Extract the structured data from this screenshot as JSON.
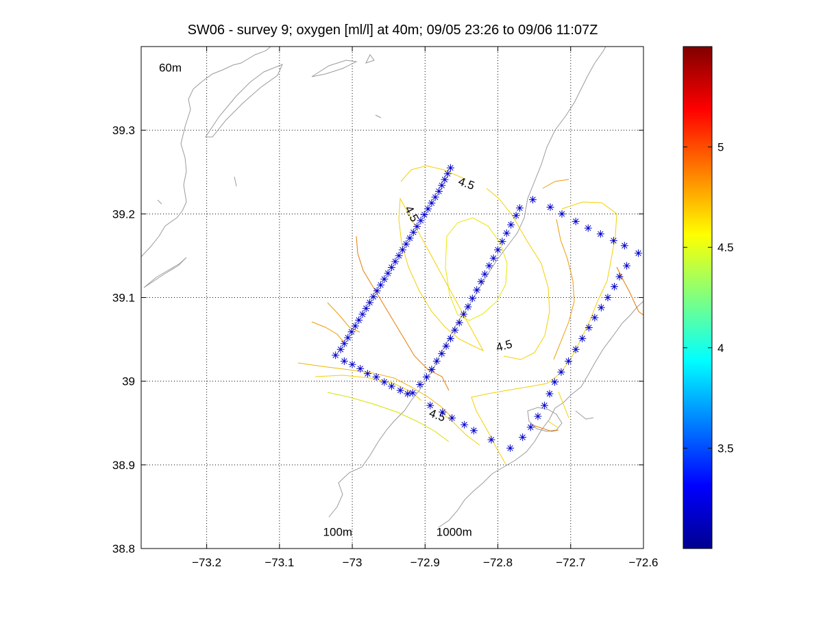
{
  "chart_data": {
    "type": "contour",
    "title": "SW06 - survey 9; oxygen [ml/l] at 40m; 09/05 23:26 to 09/06 11:07Z",
    "xlim": [
      -73.29,
      -72.6
    ],
    "ylim": [
      38.8,
      39.4
    ],
    "xticks": [
      -73.2,
      -73.1,
      -73.0,
      -72.9,
      -72.8,
      -72.7,
      -72.6
    ],
    "xtick_labels": [
      "-73.2",
      "-73.1",
      "-73",
      "-72.9",
      "-72.8",
      "-72.7",
      "-72.6"
    ],
    "yticks": [
      38.8,
      38.9,
      39.0,
      39.1,
      39.2,
      39.3
    ],
    "ytick_labels": [
      "38.8",
      "38.9",
      "39",
      "39.1",
      "39.2",
      "39.3"
    ],
    "grid": true,
    "colorbar": {
      "colormap": "jet",
      "range": [
        3.0,
        5.5
      ],
      "ticks": [
        3.5,
        4.0,
        4.5,
        5.0
      ],
      "tick_labels": [
        "3.5",
        "4",
        "4.5",
        "5"
      ]
    },
    "isobath_labels": [
      {
        "text": "60m",
        "lon": -73.25,
        "lat": 39.37
      },
      {
        "text": "100m",
        "lon": -73.02,
        "lat": 38.815
      },
      {
        "text": "1000m",
        "lon": -72.86,
        "lat": 38.815
      }
    ],
    "contour_labels": [
      {
        "text": "4.5",
        "lon": -72.845,
        "lat": 39.232,
        "rotate": 20
      },
      {
        "text": "4.5",
        "lon": -72.923,
        "lat": 39.198,
        "rotate": 62
      },
      {
        "text": "4.5",
        "lon": -72.79,
        "lat": 39.038,
        "rotate": -15
      },
      {
        "text": "4.5",
        "lon": -72.885,
        "lat": 38.955,
        "rotate": 20
      }
    ],
    "stations": [
      {
        "lon": -72.865,
        "lat": 39.255
      },
      {
        "lon": -72.869,
        "lat": 39.248
      },
      {
        "lon": -72.873,
        "lat": 39.241
      },
      {
        "lon": -72.877,
        "lat": 39.234
      },
      {
        "lon": -72.881,
        "lat": 39.227
      },
      {
        "lon": -72.886,
        "lat": 39.22
      },
      {
        "lon": -72.891,
        "lat": 39.213
      },
      {
        "lon": -72.896,
        "lat": 39.206
      },
      {
        "lon": -72.901,
        "lat": 39.199
      },
      {
        "lon": -72.906,
        "lat": 39.192
      },
      {
        "lon": -72.911,
        "lat": 39.185
      },
      {
        "lon": -72.916,
        "lat": 39.178
      },
      {
        "lon": -72.921,
        "lat": 39.171
      },
      {
        "lon": -72.926,
        "lat": 39.164
      },
      {
        "lon": -72.931,
        "lat": 39.157
      },
      {
        "lon": -72.936,
        "lat": 39.15
      },
      {
        "lon": -72.941,
        "lat": 39.143
      },
      {
        "lon": -72.946,
        "lat": 39.136
      },
      {
        "lon": -72.951,
        "lat": 39.129
      },
      {
        "lon": -72.956,
        "lat": 39.122
      },
      {
        "lon": -72.961,
        "lat": 39.115
      },
      {
        "lon": -72.966,
        "lat": 39.108
      },
      {
        "lon": -72.971,
        "lat": 39.101
      },
      {
        "lon": -72.976,
        "lat": 39.094
      },
      {
        "lon": -72.981,
        "lat": 39.087
      },
      {
        "lon": -72.986,
        "lat": 39.08
      },
      {
        "lon": -72.991,
        "lat": 39.073
      },
      {
        "lon": -72.996,
        "lat": 39.066
      },
      {
        "lon": -73.001,
        "lat": 39.059
      },
      {
        "lon": -73.006,
        "lat": 39.052
      },
      {
        "lon": -73.011,
        "lat": 39.045
      },
      {
        "lon": -73.016,
        "lat": 39.038
      },
      {
        "lon": -73.023,
        "lat": 39.031
      },
      {
        "lon": -73.011,
        "lat": 39.024
      },
      {
        "lon": -73.0,
        "lat": 39.02
      },
      {
        "lon": -72.989,
        "lat": 39.015
      },
      {
        "lon": -72.979,
        "lat": 39.009
      },
      {
        "lon": -72.967,
        "lat": 39.005
      },
      {
        "lon": -72.956,
        "lat": 38.999
      },
      {
        "lon": -72.946,
        "lat": 38.994
      },
      {
        "lon": -72.934,
        "lat": 38.989
      },
      {
        "lon": -72.924,
        "lat": 38.985
      },
      {
        "lon": -72.893,
        "lat": 38.971
      },
      {
        "lon": -72.876,
        "lat": 38.963
      },
      {
        "lon": -72.863,
        "lat": 38.956
      },
      {
        "lon": -72.846,
        "lat": 38.948
      },
      {
        "lon": -72.833,
        "lat": 38.941
      },
      {
        "lon": -72.809,
        "lat": 38.93
      },
      {
        "lon": -72.783,
        "lat": 38.92
      },
      {
        "lon": -72.766,
        "lat": 38.933
      },
      {
        "lon": -72.755,
        "lat": 38.945
      },
      {
        "lon": -72.745,
        "lat": 38.958
      },
      {
        "lon": -72.736,
        "lat": 38.971
      },
      {
        "lon": -72.729,
        "lat": 38.985
      },
      {
        "lon": -72.722,
        "lat": 38.999
      },
      {
        "lon": -72.713,
        "lat": 39.011
      },
      {
        "lon": -72.703,
        "lat": 39.024
      },
      {
        "lon": -72.693,
        "lat": 39.038
      },
      {
        "lon": -72.684,
        "lat": 39.051
      },
      {
        "lon": -72.675,
        "lat": 39.064
      },
      {
        "lon": -72.667,
        "lat": 39.076
      },
      {
        "lon": -72.658,
        "lat": 39.088
      },
      {
        "lon": -72.649,
        "lat": 39.1
      },
      {
        "lon": -72.64,
        "lat": 39.113
      },
      {
        "lon": -72.633,
        "lat": 39.125
      },
      {
        "lon": -72.623,
        "lat": 39.138
      },
      {
        "lon": -72.626,
        "lat": 39.162
      },
      {
        "lon": -72.607,
        "lat": 39.153
      },
      {
        "lon": -72.641,
        "lat": 39.168
      },
      {
        "lon": -72.659,
        "lat": 39.176
      },
      {
        "lon": -72.676,
        "lat": 39.183
      },
      {
        "lon": -72.693,
        "lat": 39.191
      },
      {
        "lon": -72.712,
        "lat": 39.2
      },
      {
        "lon": -72.728,
        "lat": 39.208
      },
      {
        "lon": -72.752,
        "lat": 39.217
      },
      {
        "lon": -72.77,
        "lat": 39.207
      },
      {
        "lon": -72.775,
        "lat": 39.198
      },
      {
        "lon": -72.782,
        "lat": 39.187
      },
      {
        "lon": -72.788,
        "lat": 39.177
      },
      {
        "lon": -72.794,
        "lat": 39.167
      },
      {
        "lon": -72.8,
        "lat": 39.157
      },
      {
        "lon": -72.806,
        "lat": 39.147
      },
      {
        "lon": -72.812,
        "lat": 39.138
      },
      {
        "lon": -72.818,
        "lat": 39.128
      },
      {
        "lon": -72.823,
        "lat": 39.119
      },
      {
        "lon": -72.829,
        "lat": 39.109
      },
      {
        "lon": -72.835,
        "lat": 39.099
      },
      {
        "lon": -72.841,
        "lat": 39.089
      },
      {
        "lon": -72.847,
        "lat": 39.08
      },
      {
        "lon": -72.853,
        "lat": 39.07
      },
      {
        "lon": -72.859,
        "lat": 39.061
      },
      {
        "lon": -72.865,
        "lat": 39.051
      },
      {
        "lon": -72.871,
        "lat": 39.042
      },
      {
        "lon": -72.877,
        "lat": 39.033
      },
      {
        "lon": -72.884,
        "lat": 39.024
      },
      {
        "lon": -72.891,
        "lat": 39.014
      },
      {
        "lon": -72.898,
        "lat": 39.005
      },
      {
        "lon": -72.907,
        "lat": 38.996
      },
      {
        "lon": -72.917,
        "lat": 38.986
      }
    ]
  }
}
